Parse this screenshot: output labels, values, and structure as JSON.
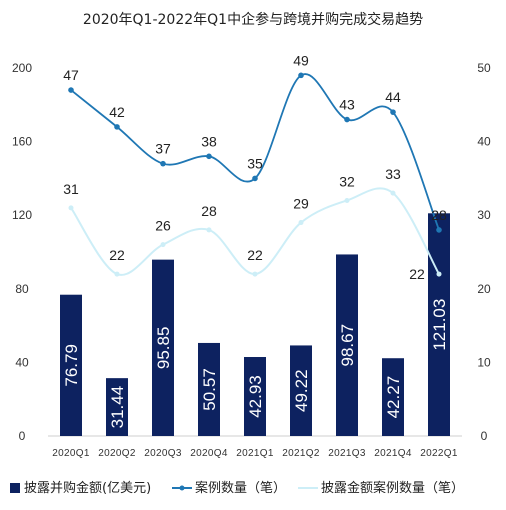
{
  "chart_data": {
    "type": "bar+line",
    "title": "2020年Q1-2022年Q1中企参与跨境并购完成交易趋势",
    "categories": [
      "2020Q1",
      "2020Q2",
      "2020Q3",
      "2020Q4",
      "2021Q1",
      "2021Q2",
      "2021Q3",
      "2021Q4",
      "2022Q1"
    ],
    "left_axis": {
      "min": 0,
      "max": 200,
      "ticks": [
        "0",
        "40",
        "80",
        "120",
        "160",
        "200"
      ]
    },
    "right_axis": {
      "min": 0,
      "max": 50,
      "ticks": [
        "0",
        "10",
        "20",
        "30",
        "40",
        "50"
      ]
    },
    "series": [
      {
        "name": "披露并购金额(亿美元)",
        "type": "bar",
        "axis": "left",
        "color": "#0d2260",
        "values": [
          76.79,
          31.44,
          95.85,
          50.57,
          42.93,
          49.22,
          98.67,
          42.27,
          121.03
        ],
        "labels": [
          "76.79",
          "31.44",
          "95.85",
          "50.57",
          "42.93",
          "49.22",
          "98.67",
          "42.27",
          "121.03"
        ]
      },
      {
        "name": "案例数量（笔）",
        "type": "line",
        "axis": "right",
        "color": "#1f77b4",
        "values": [
          47,
          42,
          37,
          38,
          35,
          49,
          43,
          44,
          28
        ],
        "labels": [
          "47",
          "42",
          "37",
          "38",
          "35",
          "49",
          "43",
          "44",
          "28"
        ]
      },
      {
        "name": "披露金额案例数量（笔）",
        "type": "line",
        "axis": "right",
        "color": "#cdeef7",
        "values": [
          31,
          22,
          26,
          28,
          22,
          29,
          32,
          33,
          22
        ],
        "labels": [
          "31",
          "22",
          "26",
          "28",
          "22",
          "29",
          "32",
          "33",
          "22"
        ]
      }
    ],
    "legend": {
      "position": "bottom"
    },
    "grid": false
  }
}
